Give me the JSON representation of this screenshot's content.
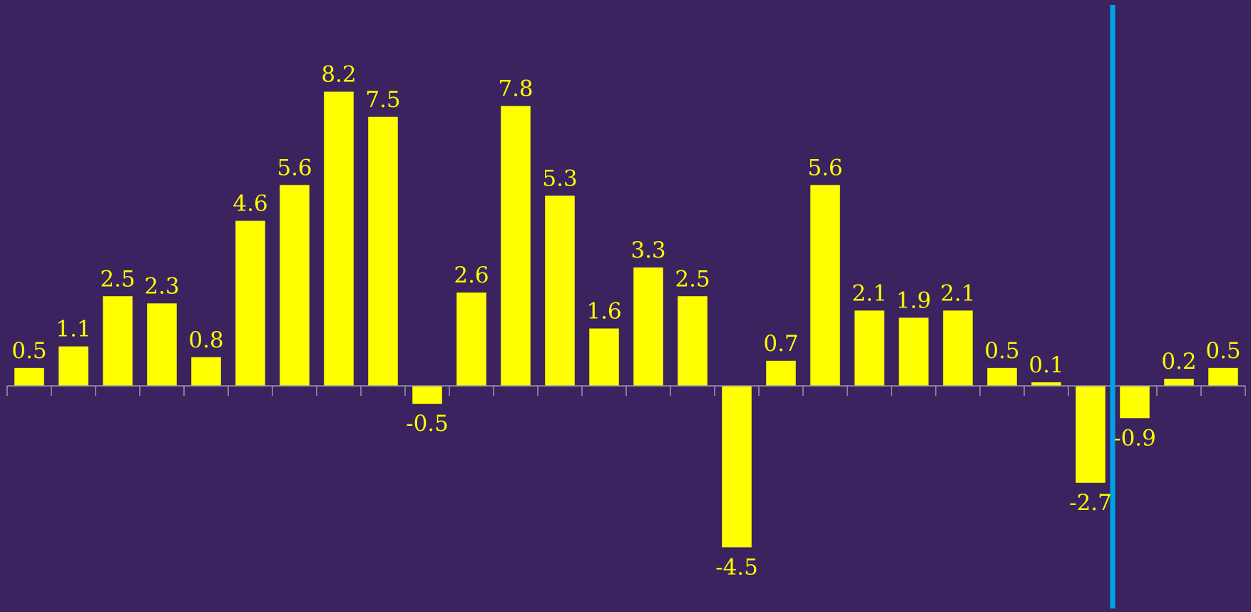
{
  "colors": {
    "background": "#3a235e",
    "bar": "#ffff00",
    "label": "#ffff00",
    "axis": "#9e97ae",
    "marker_line": "#00a2e8"
  },
  "chart_data": {
    "type": "bar",
    "title": "",
    "xlabel": "",
    "ylabel": "",
    "grid": false,
    "legend": "none",
    "ylim": [
      -5.7,
      9.0
    ],
    "values": [
      0.5,
      1.1,
      2.5,
      2.3,
      0.8,
      4.6,
      5.6,
      8.2,
      7.5,
      -0.5,
      2.6,
      7.8,
      5.3,
      1.6,
      3.3,
      2.5,
      -4.5,
      0.7,
      5.6,
      2.1,
      1.9,
      2.1,
      0.5,
      0.1,
      -2.7,
      -0.9,
      0.2,
      0.5
    ],
    "data_labels": [
      "0.5",
      "1.1",
      "2.5",
      "2.3",
      "0.8",
      "4.6",
      "5.6",
      "8.2",
      "7.5",
      "-0.5",
      "2.6",
      "7.8",
      "5.3",
      "1.6",
      "3.3",
      "2.5",
      "-4.5",
      "0.7",
      "5.6",
      "2.1",
      "1.9",
      "2.1",
      "0.5",
      "0.1",
      "-2.7",
      "-0.9",
      "0.2",
      "0.5"
    ],
    "vertical_marker_between_index": [
      24,
      25
    ]
  }
}
